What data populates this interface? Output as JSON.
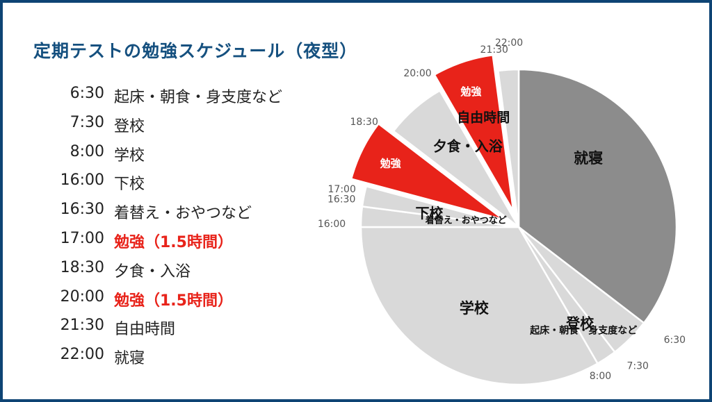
{
  "title": "定期テストの勉強スケジュール（夜型）",
  "schedule": [
    {
      "time": "6:30",
      "activity": "起床・朝食・身支度など"
    },
    {
      "time": "7:30",
      "activity": "登校"
    },
    {
      "time": "8:00",
      "activity": "学校"
    },
    {
      "time": "16:00",
      "activity": "下校"
    },
    {
      "time": "16:30",
      "activity": "着替え・おやつなど"
    },
    {
      "time": "17:00",
      "activity": "勉強（1.5時間）",
      "highlight": true
    },
    {
      "time": "18:30",
      "activity": "夕食・入浴"
    },
    {
      "time": "20:00",
      "activity": "勉強（1.5時間）",
      "highlight": true
    },
    {
      "time": "21:30",
      "activity": "自由時間"
    },
    {
      "time": "22:00",
      "activity": "就寝"
    }
  ],
  "colors": {
    "frame": "#0e4474",
    "title": "#15507f",
    "study": "#e8231a",
    "sleep": "#8c8c8c",
    "other": "#d9d9d9",
    "text": "#222222",
    "tick_text": "#555555"
  },
  "chart_data": {
    "type": "pie",
    "title": "",
    "start_angle_time": "22:00",
    "slices": [
      {
        "label": "就寝",
        "start": "22:00",
        "end": "6:30",
        "hours": 8.5,
        "category": "sleep"
      },
      {
        "label": "起床・朝食・身支度など",
        "start": "6:30",
        "end": "7:30",
        "hours": 1,
        "category": "other"
      },
      {
        "label": "登校",
        "start": "7:30",
        "end": "8:00",
        "hours": 0.5,
        "category": "other"
      },
      {
        "label": "学校",
        "start": "8:00",
        "end": "16:00",
        "hours": 8,
        "category": "other"
      },
      {
        "label": "下校",
        "start": "16:00",
        "end": "16:30",
        "hours": 0.5,
        "category": "other"
      },
      {
        "label": "着替え・おやつなど",
        "start": "16:30",
        "end": "17:00",
        "hours": 0.5,
        "category": "other"
      },
      {
        "label": "勉強",
        "start": "17:00",
        "end": "18:30",
        "hours": 1.5,
        "category": "study",
        "exploded": true
      },
      {
        "label": "夕食・入浴",
        "start": "18:30",
        "end": "20:00",
        "hours": 1.5,
        "category": "other"
      },
      {
        "label": "勉強",
        "start": "20:00",
        "end": "21:30",
        "hours": 1.5,
        "category": "study",
        "exploded": true
      },
      {
        "label": "自由時間",
        "start": "21:30",
        "end": "22:00",
        "hours": 0.5,
        "category": "other"
      }
    ],
    "boundary_labels": [
      "22:00",
      "6:30",
      "7:30",
      "8:00",
      "16:00",
      "16:30",
      "17:00",
      "18:30",
      "20:00",
      "21:30"
    ]
  }
}
